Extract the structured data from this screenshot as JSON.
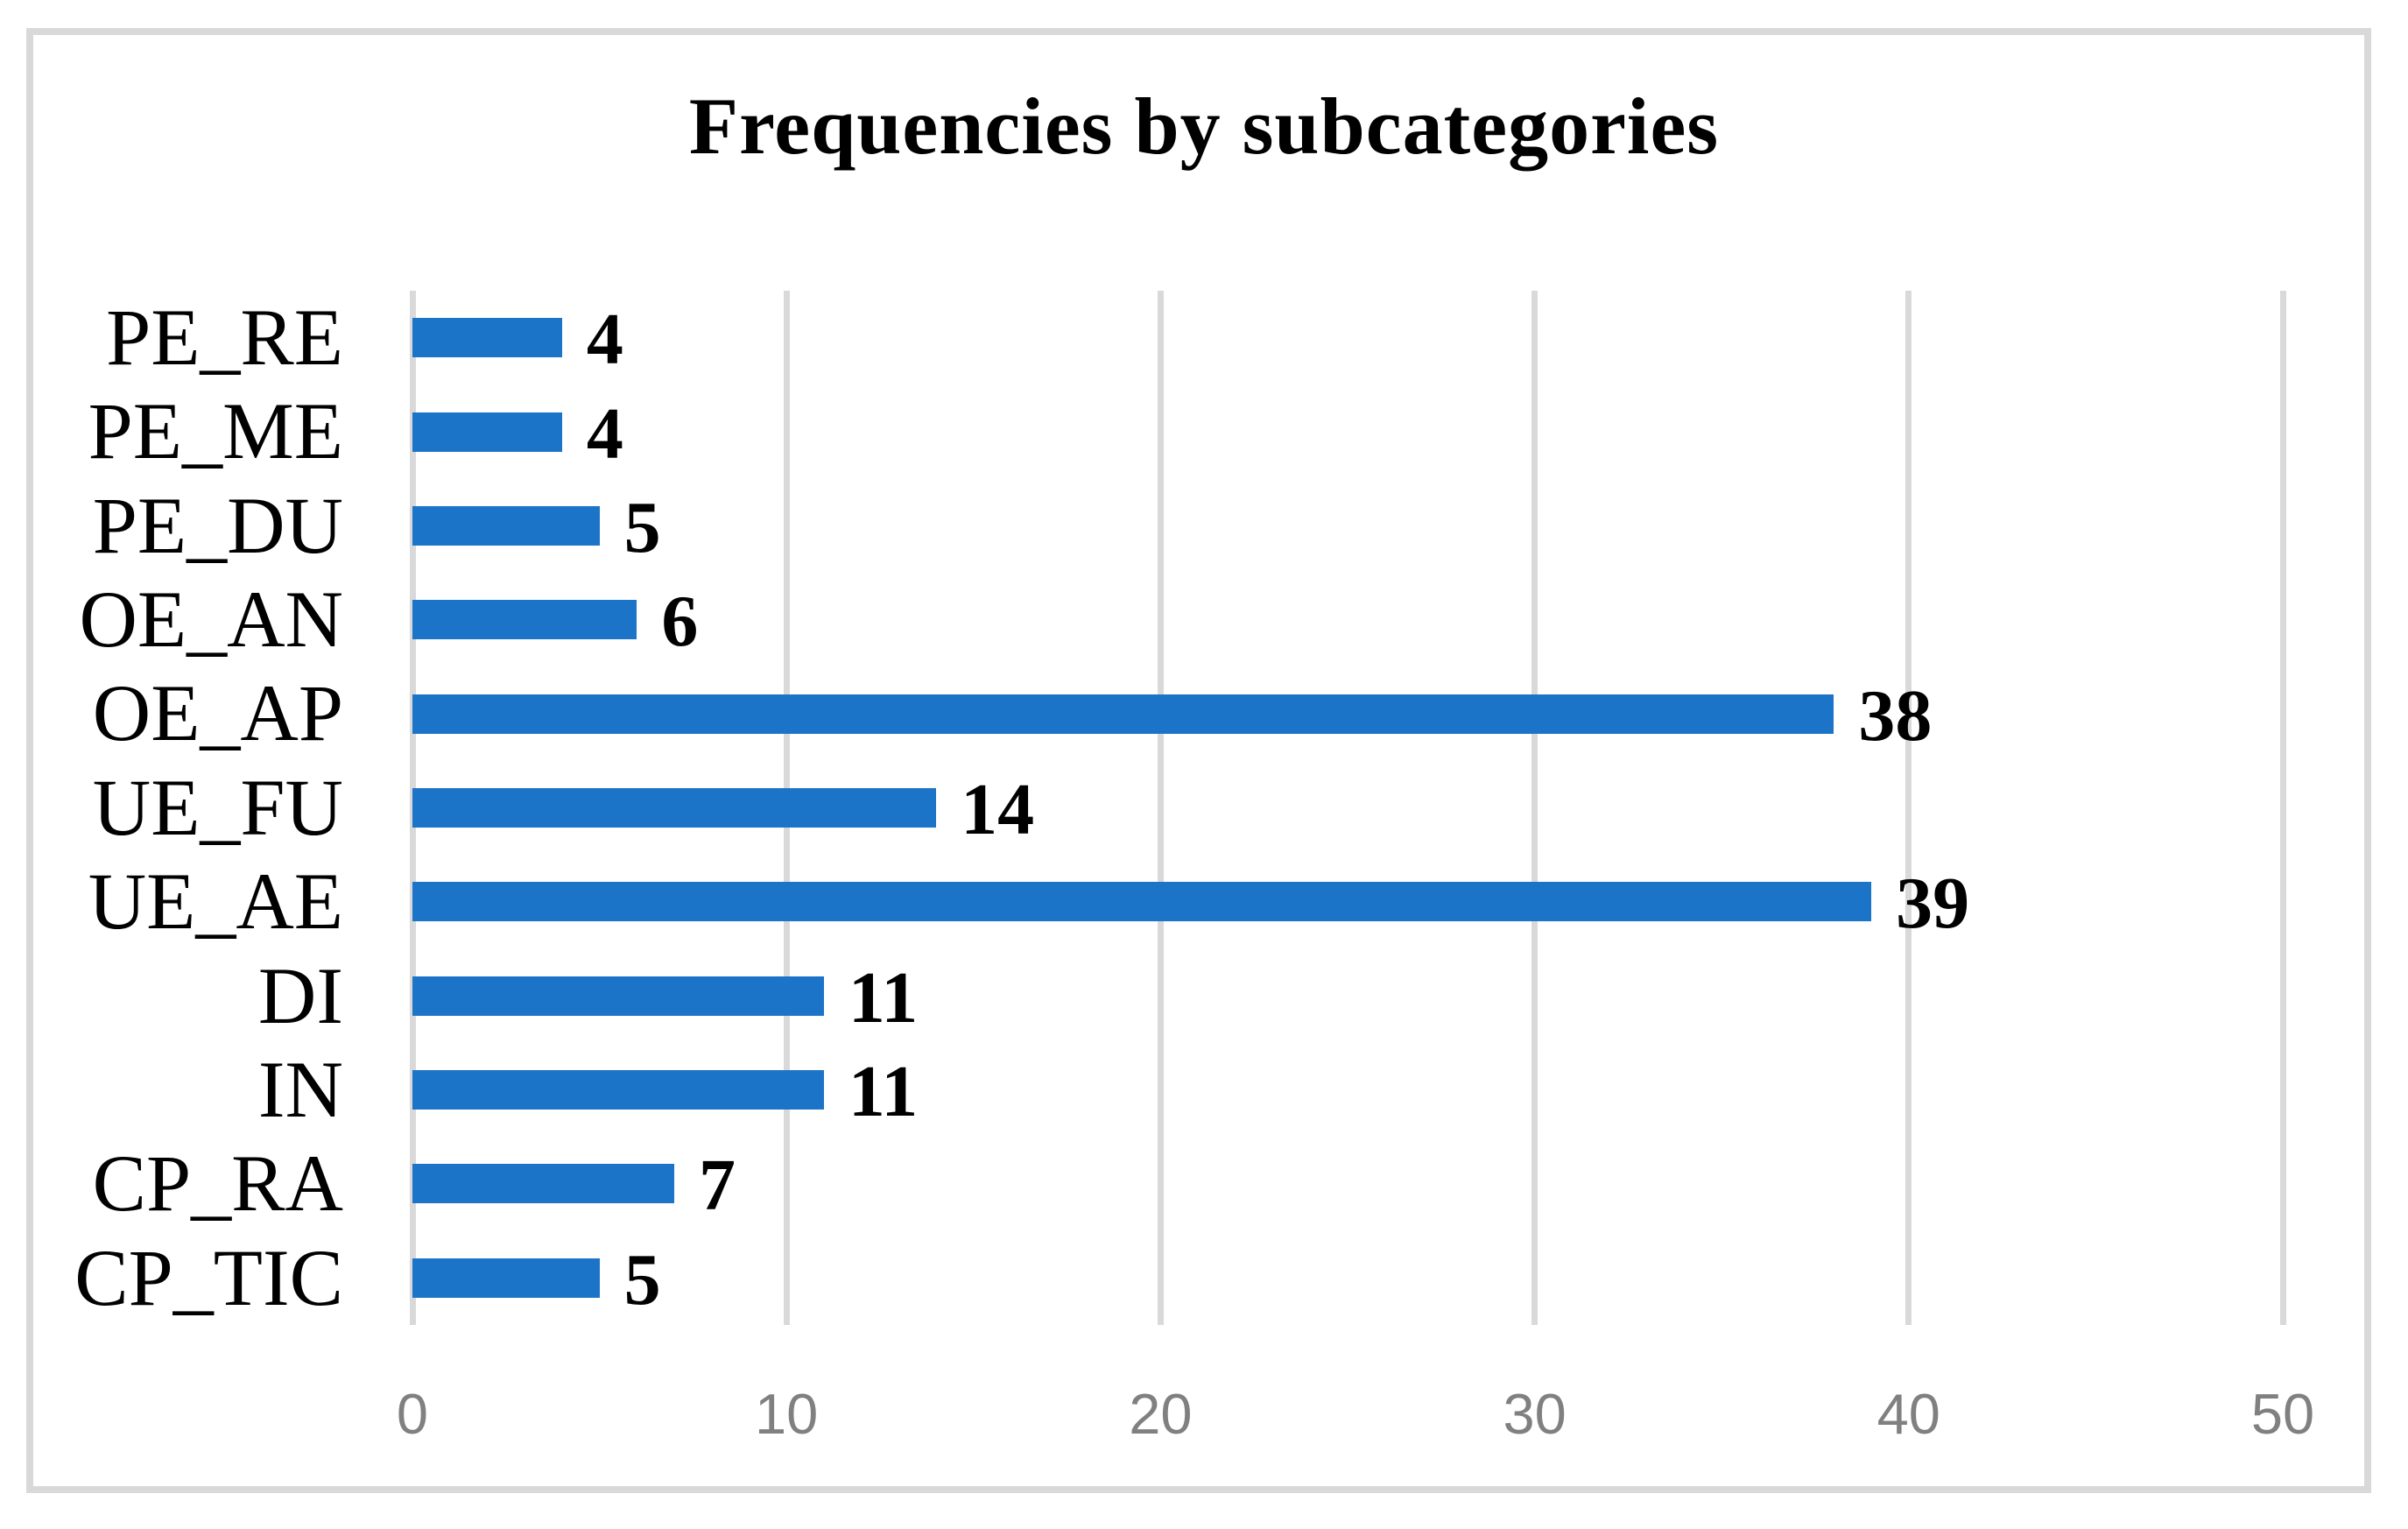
{
  "chart_data": {
    "type": "bar",
    "orientation": "horizontal",
    "title": "Frequencies by subcategories",
    "categories": [
      "PE_RE",
      "PE_ME",
      "PE_DU",
      "OE_AN",
      "OE_AP",
      "UE_FU",
      "UE_AE",
      "DI",
      "IN",
      "CP_RA",
      "CP_TIC"
    ],
    "values": [
      4,
      4,
      5,
      6,
      38,
      14,
      39,
      11,
      11,
      7,
      5
    ],
    "data_labels": [
      "4",
      "4",
      "5",
      "6",
      "38",
      "14",
      "39",
      "11",
      "11",
      "7",
      "5"
    ],
    "x_ticks": [
      "0",
      "10",
      "20",
      "30",
      "40",
      "50"
    ],
    "xlim": [
      0,
      50
    ],
    "xlabel": "",
    "ylabel": "",
    "grid": true,
    "legend": false,
    "colors": {
      "bar": "#1B74C8",
      "gridline": "#D9D9D9",
      "frame_border": "#D9D9D9",
      "tick_label": "#808080",
      "text": "#000000",
      "background": "#FFFFFF"
    }
  }
}
